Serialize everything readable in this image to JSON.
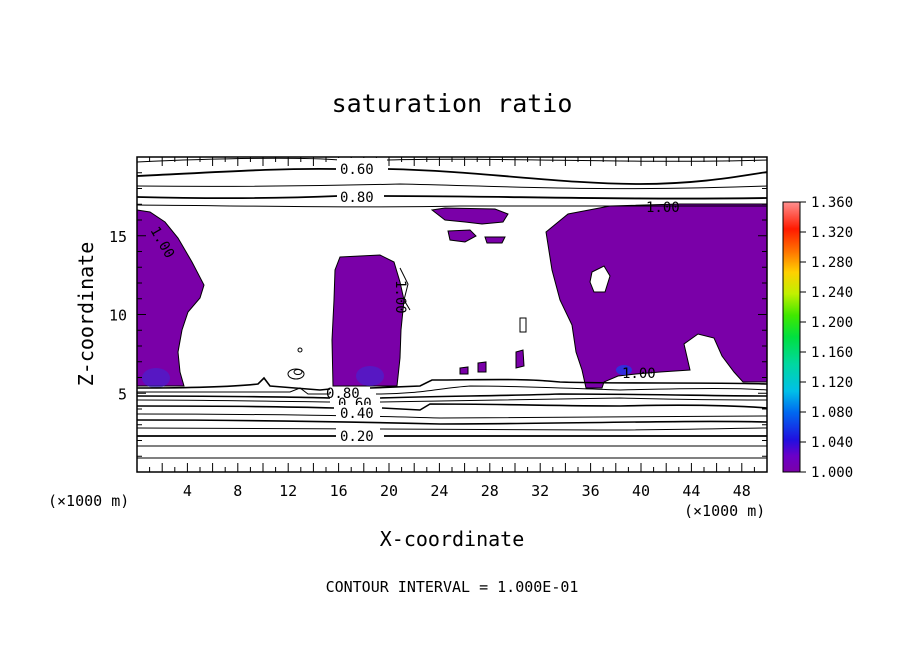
{
  "chart_data": {
    "type": "heatmap",
    "title": "saturation ratio",
    "xlabel": "X-coordinate",
    "ylabel": "Z-coordinate",
    "x_unit": "(×1000 m)",
    "y_unit": "(×1000 m)",
    "xlim": [
      0,
      50
    ],
    "ylim": [
      0,
      20
    ],
    "x_ticks": [
      4,
      8,
      12,
      16,
      20,
      24,
      28,
      32,
      36,
      40,
      44,
      48
    ],
    "y_ticks": [
      5,
      10,
      15
    ],
    "contour_interval_text": "CONTOUR INTERVAL = 1.000E-01",
    "contour_labels": [
      "0.60",
      "0.80",
      "1.00",
      "1.00",
      "1.00",
      "1.00",
      "0.80",
      "0.60",
      "0.40",
      "0.20"
    ],
    "colorbar": {
      "min": 1.0,
      "max": 1.36,
      "labels": [
        "1.360",
        "1.320",
        "1.280",
        "1.240",
        "1.200",
        "1.160",
        "1.120",
        "1.080",
        "1.040",
        "1.000"
      ]
    },
    "fill_color": "#7a00a8",
    "grid": false
  }
}
